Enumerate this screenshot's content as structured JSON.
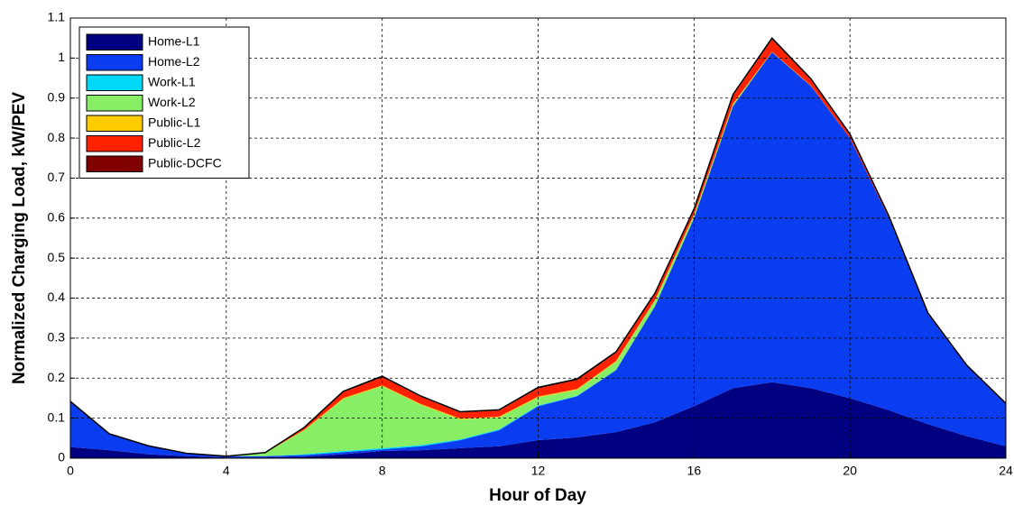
{
  "chart_data": {
    "type": "stacked_area",
    "xlabel": "Hour of Day",
    "ylabel": "Normalized Charging Load, kW/PEV",
    "x": [
      0,
      1,
      2,
      3,
      4,
      5,
      6,
      7,
      8,
      9,
      10,
      11,
      12,
      13,
      14,
      15,
      16,
      17,
      18,
      19,
      20,
      21,
      22,
      23,
      24
    ],
    "series": [
      {
        "name": "Home-L1",
        "color": "#000080",
        "values": [
          0.028,
          0.02,
          0.01,
          0.005,
          0.002,
          0.002,
          0.004,
          0.01,
          0.018,
          0.02,
          0.025,
          0.03,
          0.045,
          0.052,
          0.065,
          0.09,
          0.13,
          0.175,
          0.19,
          0.175,
          0.15,
          0.12,
          0.085,
          0.055,
          0.03
        ]
      },
      {
        "name": "Home-L2",
        "color": "#0a3cf0",
        "values": [
          0.112,
          0.04,
          0.02,
          0.007,
          0.003,
          0.003,
          0.004,
          0.005,
          0.004,
          0.01,
          0.02,
          0.04,
          0.085,
          0.103,
          0.155,
          0.29,
          0.47,
          0.705,
          0.825,
          0.755,
          0.65,
          0.48,
          0.275,
          0.175,
          0.105
        ]
      },
      {
        "name": "Work-L1",
        "color": "#00d8f8",
        "values": [
          0,
          0,
          0,
          0,
          0,
          0,
          0.002,
          0.003,
          0.003,
          0.003,
          0.002,
          0.002,
          0.002,
          0.001,
          0.001,
          0,
          0,
          0,
          0,
          0,
          0,
          0,
          0,
          0,
          0
        ]
      },
      {
        "name": "Work-L2",
        "color": "#88ee66",
        "values": [
          0,
          0,
          0,
          0,
          0,
          0.008,
          0.06,
          0.13,
          0.155,
          0.1,
          0.05,
          0.03,
          0.02,
          0.015,
          0.02,
          0.015,
          0.008,
          0.005,
          0,
          0,
          0,
          0,
          0,
          0,
          0
        ]
      },
      {
        "name": "Public-L1",
        "color": "#ffcc00",
        "values": [
          0,
          0,
          0,
          0,
          0,
          0,
          0.001,
          0.002,
          0.002,
          0.002,
          0.002,
          0.002,
          0.002,
          0.002,
          0.002,
          0.001,
          0.001,
          0.001,
          0.001,
          0.001,
          0,
          0,
          0,
          0,
          0
        ]
      },
      {
        "name": "Public-L2",
        "color": "#ff2200",
        "values": [
          0.002,
          0.001,
          0.001,
          0,
          0,
          0.001,
          0.005,
          0.015,
          0.02,
          0.018,
          0.015,
          0.015,
          0.02,
          0.022,
          0.02,
          0.015,
          0.012,
          0.02,
          0.03,
          0.015,
          0.008,
          0.004,
          0.002,
          0.002,
          0.002
        ]
      },
      {
        "name": "Public-DCFC",
        "color": "#800000",
        "values": [
          0,
          0,
          0,
          0,
          0,
          0,
          0.001,
          0.002,
          0.003,
          0.002,
          0.002,
          0.002,
          0.003,
          0.003,
          0.003,
          0.002,
          0.002,
          0.003,
          0.004,
          0.002,
          0.002,
          0.001,
          0.001,
          0,
          0
        ]
      }
    ],
    "xlim": [
      0,
      24
    ],
    "xticks": [
      0,
      4,
      8,
      12,
      16,
      20,
      24
    ],
    "ylim": [
      0,
      1.1
    ],
    "yticks": [
      0,
      0.1,
      0.2,
      0.3,
      0.4,
      0.5,
      0.6,
      0.7,
      0.8,
      0.9,
      1,
      1.1
    ],
    "grid": true,
    "legend": "upper left"
  }
}
